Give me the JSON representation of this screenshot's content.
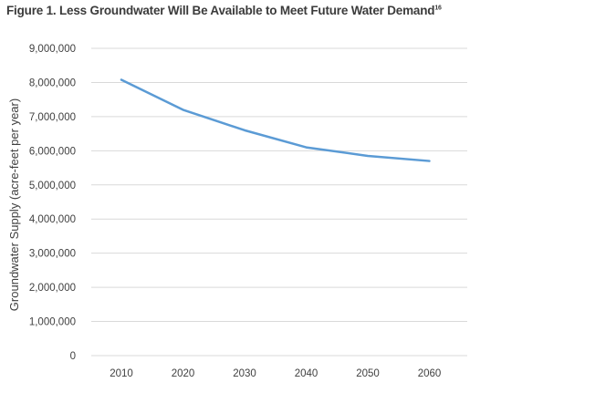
{
  "figure": {
    "title": "Figure 1. Less Groundwater Will Be Available to Meet Future Water Demand",
    "footnote_ref": "16"
  },
  "chart_data": {
    "type": "line",
    "title": "Figure 1. Less Groundwater Will Be Available to Meet Future Water Demand",
    "xlabel": "",
    "ylabel": "Groundwater Supply (acre-feet per year)",
    "categories": [
      "2010",
      "2020",
      "2030",
      "2040",
      "2050",
      "2060"
    ],
    "series": [
      {
        "values": [
          8080000,
          7200000,
          6600000,
          6100000,
          5850000,
          5700000
        ],
        "color": "#5b9bd5"
      }
    ],
    "ylim": [
      0,
      9000000
    ],
    "yticks": [
      0,
      1000000,
      2000000,
      3000000,
      4000000,
      5000000,
      6000000,
      7000000,
      8000000,
      9000000
    ],
    "ytick_labels": [
      "0",
      "1,000,000",
      "2,000,000",
      "3,000,000",
      "4,000,000",
      "5,000,000",
      "6,000,000",
      "7,000,000",
      "8,000,000",
      "9,000,000"
    ],
    "grid": true,
    "legend": "none",
    "gridline_color": "#d9d9d9"
  }
}
